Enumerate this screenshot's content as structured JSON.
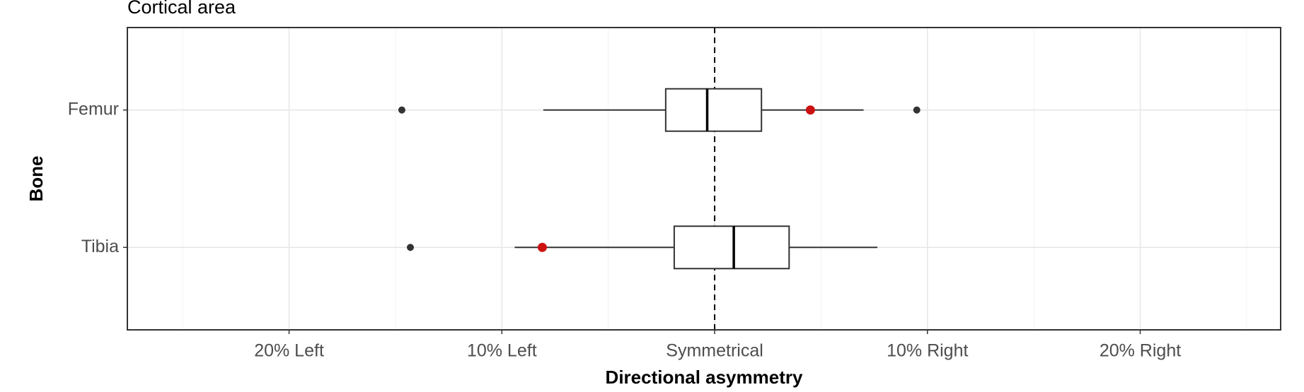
{
  "chart_data": {
    "type": "boxplot",
    "title": "Cortical area",
    "x_label": "Directional asymmetry",
    "y_label": "Bone",
    "categories": [
      "Femur",
      "Tibia"
    ],
    "boxes": [
      {
        "whislo": -8.05,
        "q1": -2.3,
        "med": -0.35,
        "q3": 2.2,
        "whishi": 7.0,
        "fliers": [
          -14.7,
          9.5
        ]
      },
      {
        "whislo": -9.4,
        "q1": -1.9,
        "med": 0.9,
        "q3": 3.5,
        "whishi": 7.65,
        "fliers": [
          -14.3
        ]
      }
    ],
    "highlight": {
      "color": "#cc1111",
      "values": [
        4.5,
        -8.1
      ]
    },
    "refline": 0,
    "xlim": [
      -27.6,
      26.6
    ],
    "xticks": [
      {
        "value": -20,
        "label": "20% Left"
      },
      {
        "value": -10,
        "label": "10% Left"
      },
      {
        "value": 0,
        "label": "Symmetrical"
      },
      {
        "value": 10,
        "label": "10% Right"
      },
      {
        "value": 20,
        "label": "20% Right"
      }
    ],
    "xminorticks": [
      -25,
      -15,
      -5,
      5,
      15,
      25
    ],
    "grid": true
  }
}
